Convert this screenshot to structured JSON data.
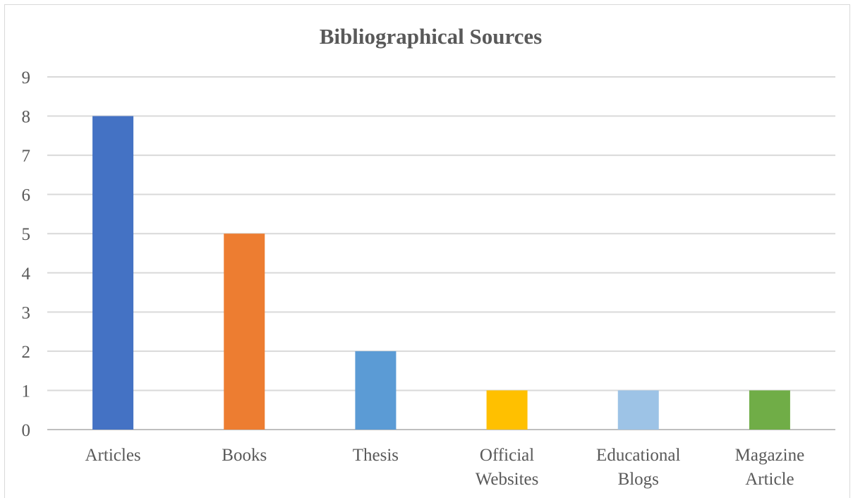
{
  "chart_data": {
    "type": "bar",
    "title": "Bibliographical Sources",
    "xlabel": "",
    "ylabel": "",
    "categories": [
      [
        "Articles"
      ],
      [
        "Books"
      ],
      [
        "Thesis"
      ],
      [
        "Official",
        "Websites"
      ],
      [
        "Educational",
        "Blogs"
      ],
      [
        "Magazine",
        "Article"
      ]
    ],
    "values": [
      8,
      5,
      2,
      1,
      1,
      1
    ],
    "colors": [
      "#4472c4",
      "#ed7d31",
      "#5b9bd5",
      "#ffc000",
      "#9dc3e6",
      "#70ad47"
    ],
    "ylim": [
      0,
      9
    ],
    "yticks": [
      "0",
      "1",
      "2",
      "3",
      "4",
      "5",
      "6",
      "7",
      "8",
      "9"
    ],
    "grid": true,
    "legend": "none"
  }
}
